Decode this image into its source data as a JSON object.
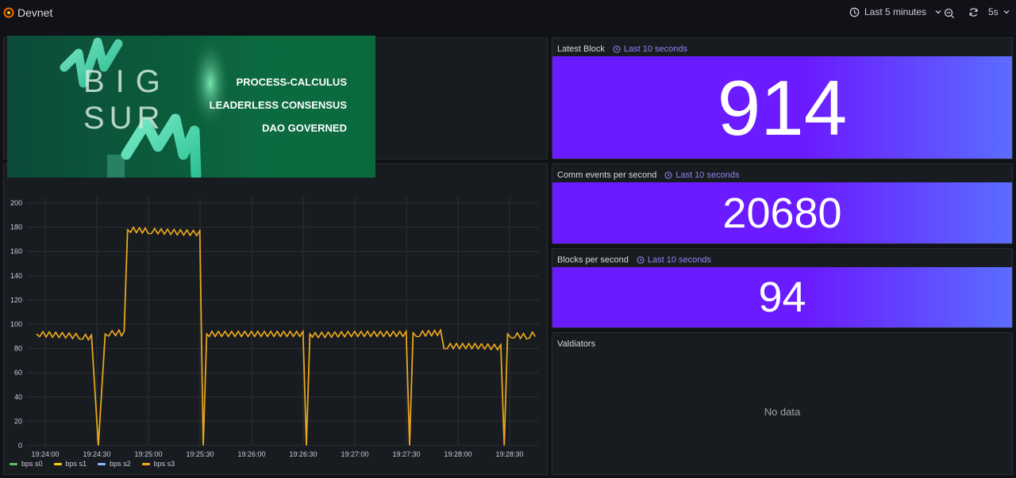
{
  "header": {
    "title": "Devnet",
    "time_range": "Last 5 minutes",
    "refresh": "5s"
  },
  "banner": {
    "big": "BIG",
    "sur": "SUR",
    "lines": [
      "PROCESS-CALCULUS",
      "LEADERLESS CONSENSUS",
      "DAO GOVERNED"
    ]
  },
  "panels": {
    "latest_block": {
      "title": "Latest Block",
      "time": "Last 10 seconds",
      "value": "914"
    },
    "comm_events": {
      "title": "Comm events per second",
      "time": "Last 10 seconds",
      "value": "20680"
    },
    "blocks_per_second": {
      "title": "Blocks per second",
      "time": "Last 10 seconds",
      "value": "94"
    },
    "validators": {
      "title": "Valdiators",
      "empty": "No data"
    }
  },
  "colors": {
    "stat_start": "#6a1bff",
    "stat_end": "#5b6dff",
    "series_line": "#f5a623"
  },
  "chart_data": {
    "type": "line",
    "x_labels": [
      "19:24:00",
      "19:24:30",
      "19:25:00",
      "19:25:30",
      "19:26:00",
      "19:26:30",
      "19:27:00",
      "19:27:30",
      "19:28:00",
      "19:28:30"
    ],
    "y_ticks": [
      "200",
      "180",
      "160",
      "140",
      "120",
      "100",
      "80",
      "60",
      "40",
      "20",
      "0"
    ],
    "ylim": [
      0,
      200
    ],
    "grid": true,
    "legend_position": "bottom-left",
    "series": [
      {
        "name": "bps s0",
        "color": "#56c15b"
      },
      {
        "name": "bps s1",
        "color": "#f2cc0c"
      },
      {
        "name": "bps s2",
        "color": "#8ab8ff"
      },
      {
        "name": "bps s3",
        "color": "#f5a623"
      }
    ],
    "points_time": [
      "19:23:55",
      "19:24:10",
      "19:24:20",
      "19:24:27",
      "19:24:31",
      "19:24:35",
      "19:24:43",
      "19:24:46",
      "19:24:48",
      "19:25:00",
      "19:25:15",
      "19:25:30",
      "19:25:32",
      "19:25:34",
      "19:25:37",
      "19:26:00",
      "19:26:30",
      "19:26:32",
      "19:26:34",
      "19:26:37",
      "19:27:00",
      "19:27:30",
      "19:27:32",
      "19:27:34",
      "19:27:36",
      "19:27:50",
      "19:27:52",
      "19:28:10",
      "19:28:25",
      "19:28:27",
      "19:28:29",
      "19:28:31",
      "19:28:40",
      "19:28:45"
    ],
    "points_value": [
      92,
      91,
      90,
      89,
      0,
      92,
      93,
      92,
      178,
      177,
      176,
      175,
      0,
      92,
      92,
      92,
      92,
      0,
      92,
      91,
      92,
      92,
      0,
      93,
      92,
      93,
      82,
      82,
      81,
      0,
      92,
      91,
      90,
      92
    ]
  }
}
